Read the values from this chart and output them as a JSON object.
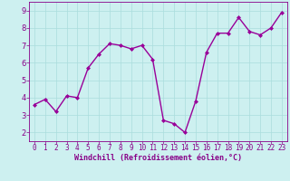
{
  "x": [
    0,
    1,
    2,
    3,
    4,
    5,
    6,
    7,
    8,
    9,
    10,
    11,
    12,
    13,
    14,
    15,
    16,
    17,
    18,
    19,
    20,
    21,
    22,
    23
  ],
  "y": [
    3.6,
    3.9,
    3.2,
    4.1,
    4.0,
    5.7,
    6.5,
    7.1,
    7.0,
    6.8,
    7.0,
    6.2,
    2.7,
    2.5,
    2.0,
    3.8,
    6.6,
    7.7,
    7.7,
    8.6,
    7.8,
    7.6,
    8.0,
    8.9
  ],
  "line_color": "#990099",
  "marker": "D",
  "marker_size": 2,
  "linewidth": 1.0,
  "bg_color": "#cdf0f0",
  "grid_color": "#aadddd",
  "xlabel": "Windchill (Refroidissement éolien,°C)",
  "xlabel_color": "#880088",
  "tick_color": "#880088",
  "spine_color": "#880088",
  "ylim": [
    1.5,
    9.5
  ],
  "xlim": [
    -0.5,
    23.5
  ],
  "yticks": [
    2,
    3,
    4,
    5,
    6,
    7,
    8,
    9
  ],
  "xticks": [
    0,
    1,
    2,
    3,
    4,
    5,
    6,
    7,
    8,
    9,
    10,
    11,
    12,
    13,
    14,
    15,
    16,
    17,
    18,
    19,
    20,
    21,
    22,
    23
  ],
  "tick_fontsize": 5.5,
  "xlabel_fontsize": 6.0
}
